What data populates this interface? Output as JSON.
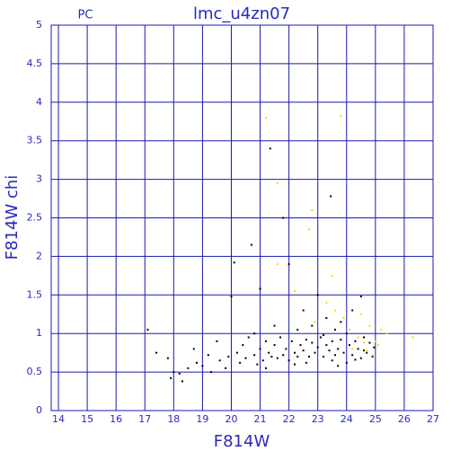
{
  "chart_data": {
    "type": "scatter",
    "title": "lmc_u4zn07",
    "corner_label": "PC",
    "x_label": "F814W",
    "y_label": "F814W chi",
    "grid": true,
    "axis_color": "#1a1ab0",
    "xlim": [
      13.75,
      27
    ],
    "xticks": [
      14,
      15,
      16,
      17,
      18,
      19,
      20,
      21,
      22,
      23,
      24,
      25,
      26,
      27
    ],
    "ylim": [
      0,
      5
    ],
    "yticks": [
      0,
      0.5,
      1,
      1.5,
      2,
      2.5,
      3,
      3.5,
      4,
      4.5,
      5
    ],
    "series": [
      {
        "color": "#000000",
        "x": [
          17.1,
          17.4,
          17.8,
          17.9,
          18.0,
          18.2,
          18.3,
          18.5,
          18.7,
          18.8,
          19.0,
          19.2,
          19.3,
          19.5,
          19.6,
          19.8,
          19.9,
          20.0,
          20.1,
          20.2,
          20.3,
          20.4,
          20.5,
          20.6,
          20.7,
          20.8,
          20.9,
          21.0,
          21.0,
          21.1,
          21.2,
          21.3,
          21.35,
          21.4,
          21.5,
          21.5,
          21.6,
          21.7,
          21.8,
          21.8,
          21.9,
          22.0,
          22.0,
          22.1,
          22.2,
          22.3,
          22.3,
          22.4,
          22.5,
          22.5,
          22.6,
          22.7,
          22.8,
          22.8,
          22.9,
          23.0,
          23.0,
          23.1,
          23.2,
          23.3,
          23.3,
          23.4,
          23.45,
          23.5,
          23.5,
          23.6,
          23.7,
          23.7,
          23.8,
          23.9,
          24.0,
          24.0,
          24.1,
          24.2,
          24.2,
          24.3,
          24.4,
          24.5,
          24.5,
          24.6,
          24.7,
          24.8,
          24.9,
          24.95,
          22.2,
          23.2,
          23.8,
          24.3,
          21.2,
          20.8,
          22.6,
          23.6,
          24.6
        ],
        "values": [
          1.05,
          0.75,
          0.68,
          0.42,
          0.5,
          0.48,
          0.38,
          0.55,
          0.8,
          0.62,
          0.58,
          0.72,
          0.5,
          0.9,
          0.65,
          0.55,
          0.7,
          1.48,
          1.92,
          0.75,
          0.62,
          0.85,
          0.68,
          0.95,
          2.15,
          0.72,
          0.6,
          1.58,
          0.8,
          0.65,
          0.9,
          0.75,
          3.4,
          0.7,
          1.1,
          0.85,
          0.68,
          0.95,
          0.72,
          2.5,
          0.8,
          1.9,
          0.65,
          0.9,
          0.75,
          1.05,
          0.7,
          0.85,
          0.78,
          1.3,
          0.92,
          0.7,
          0.88,
          1.1,
          0.75,
          0.82,
          1.5,
          0.95,
          0.7,
          0.85,
          1.2,
          0.78,
          2.78,
          0.9,
          0.65,
          1.05,
          0.8,
          0.58,
          0.92,
          0.75,
          1.0,
          0.62,
          0.85,
          1.3,
          0.72,
          0.9,
          0.8,
          1.48,
          0.68,
          0.95,
          0.75,
          0.88,
          0.7,
          0.82,
          0.6,
          0.98,
          1.15,
          0.66,
          0.55,
          1.0,
          0.62,
          0.72,
          0.78
        ]
      },
      {
        "color": "#f0e000",
        "x": [
          21.2,
          23.8,
          21.6,
          22.8,
          22.7,
          21.6,
          22.2,
          23.5,
          23.3,
          23.9,
          24.1,
          24.4,
          24.6,
          24.8,
          25.0,
          25.2,
          25.4,
          26.3,
          24.2,
          24.7,
          25.1,
          23.6,
          24.9,
          22.9,
          24.5
        ],
        "values": [
          3.8,
          3.82,
          2.95,
          2.6,
          2.35,
          1.9,
          1.55,
          1.75,
          1.4,
          1.2,
          1.05,
          0.95,
          0.88,
          1.1,
          0.9,
          1.05,
          1.0,
          0.95,
          0.8,
          0.78,
          0.85,
          1.3,
          0.72,
          1.15,
          1.25
        ]
      }
    ]
  }
}
